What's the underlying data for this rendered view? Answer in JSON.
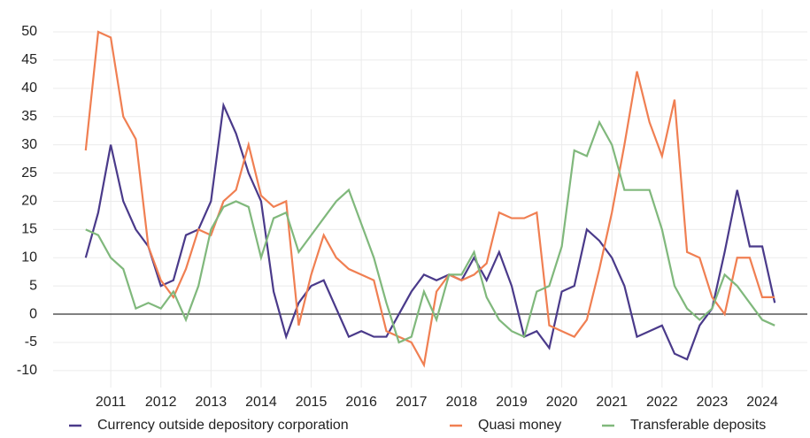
{
  "chart_data": {
    "type": "line",
    "x": [
      2011.0,
      2011.25,
      2011.5,
      2011.75,
      2012.0,
      2012.25,
      2012.5,
      2012.75,
      2013.0,
      2013.25,
      2013.5,
      2013.75,
      2014.0,
      2014.25,
      2014.5,
      2014.75,
      2015.0,
      2015.25,
      2015.5,
      2015.75,
      2016.0,
      2016.25,
      2016.5,
      2016.75,
      2017.0,
      2017.25,
      2017.5,
      2017.75,
      2018.0,
      2018.25,
      2018.5,
      2018.75,
      2019.0,
      2019.25,
      2019.5,
      2019.75,
      2020.0,
      2020.25,
      2020.5,
      2020.75,
      2021.0,
      2021.25,
      2021.5,
      2021.75,
      2022.0,
      2022.25,
      2022.5,
      2022.75,
      2023.0,
      2023.25,
      2023.5,
      2023.75,
      2024.0,
      2024.25,
      2024.5,
      2024.75
    ],
    "series": [
      {
        "name": "Currency outside depository corporation",
        "color": "#4a3a8a",
        "values": [
          10,
          18,
          30,
          20,
          15,
          12,
          5,
          6,
          14,
          15,
          20,
          37,
          32,
          25,
          20,
          4,
          -4,
          2,
          5,
          6,
          1,
          -4,
          -3,
          -4,
          -4,
          0,
          4,
          7,
          6,
          7,
          6,
          10,
          6,
          11,
          5,
          -4,
          -3,
          -6,
          4,
          5,
          15,
          13,
          10,
          5,
          -4,
          -3,
          -2,
          -7,
          -8,
          -2,
          1,
          11,
          22,
          12,
          12,
          2
        ]
      },
      {
        "name": "Quasi money",
        "color": "#f07f52",
        "values": [
          29,
          50,
          49,
          35,
          31,
          12,
          6,
          3,
          8,
          15,
          14,
          20,
          22,
          30,
          21,
          19,
          20,
          -2,
          7,
          14,
          10,
          8,
          7,
          6,
          -3,
          -4,
          -5,
          -9,
          4,
          7,
          6,
          7,
          9,
          18,
          17,
          17,
          18,
          -2,
          -3,
          -4,
          -1,
          8,
          18,
          30,
          43,
          34,
          28,
          38,
          11,
          10,
          3,
          0,
          10,
          10,
          3,
          3
        ]
      },
      {
        "name": "Transferable deposits",
        "color": "#80b87c",
        "values": [
          15,
          14,
          10,
          8,
          1,
          2,
          1,
          4,
          -1,
          5,
          15,
          19,
          20,
          19,
          10,
          17,
          18,
          11,
          14,
          17,
          20,
          22,
          16,
          10,
          2,
          -5,
          -4,
          4,
          -1,
          7,
          7,
          11,
          3,
          -1,
          -3,
          -4,
          4,
          5,
          12,
          29,
          28,
          34,
          30,
          22,
          22,
          22,
          15,
          5,
          1,
          -1,
          1,
          7,
          5,
          2,
          -1,
          -2
        ]
      }
    ],
    "xlim": [
      2010.35,
      2025.4
    ],
    "xticks": [
      {
        "value": 2011.5,
        "label": "2011"
      },
      {
        "value": 2012.5,
        "label": "2012"
      },
      {
        "value": 2013.5,
        "label": "2013"
      },
      {
        "value": 2014.5,
        "label": "2014"
      },
      {
        "value": 2015.5,
        "label": "2015"
      },
      {
        "value": 2016.5,
        "label": "2016"
      },
      {
        "value": 2017.5,
        "label": "2017"
      },
      {
        "value": 2018.5,
        "label": "2018"
      },
      {
        "value": 2019.5,
        "label": "2019"
      },
      {
        "value": 2020.5,
        "label": "2020"
      },
      {
        "value": 2021.5,
        "label": "2021"
      },
      {
        "value": 2022.5,
        "label": "2022"
      },
      {
        "value": 2023.5,
        "label": "2023"
      },
      {
        "value": 2024.5,
        "label": "2024"
      }
    ],
    "ylim": [
      -13,
      54
    ],
    "yticks": [
      -10,
      -5,
      0,
      5,
      10,
      15,
      20,
      25,
      30,
      35,
      40,
      45,
      50
    ],
    "grid": true,
    "legend": "bottom"
  }
}
